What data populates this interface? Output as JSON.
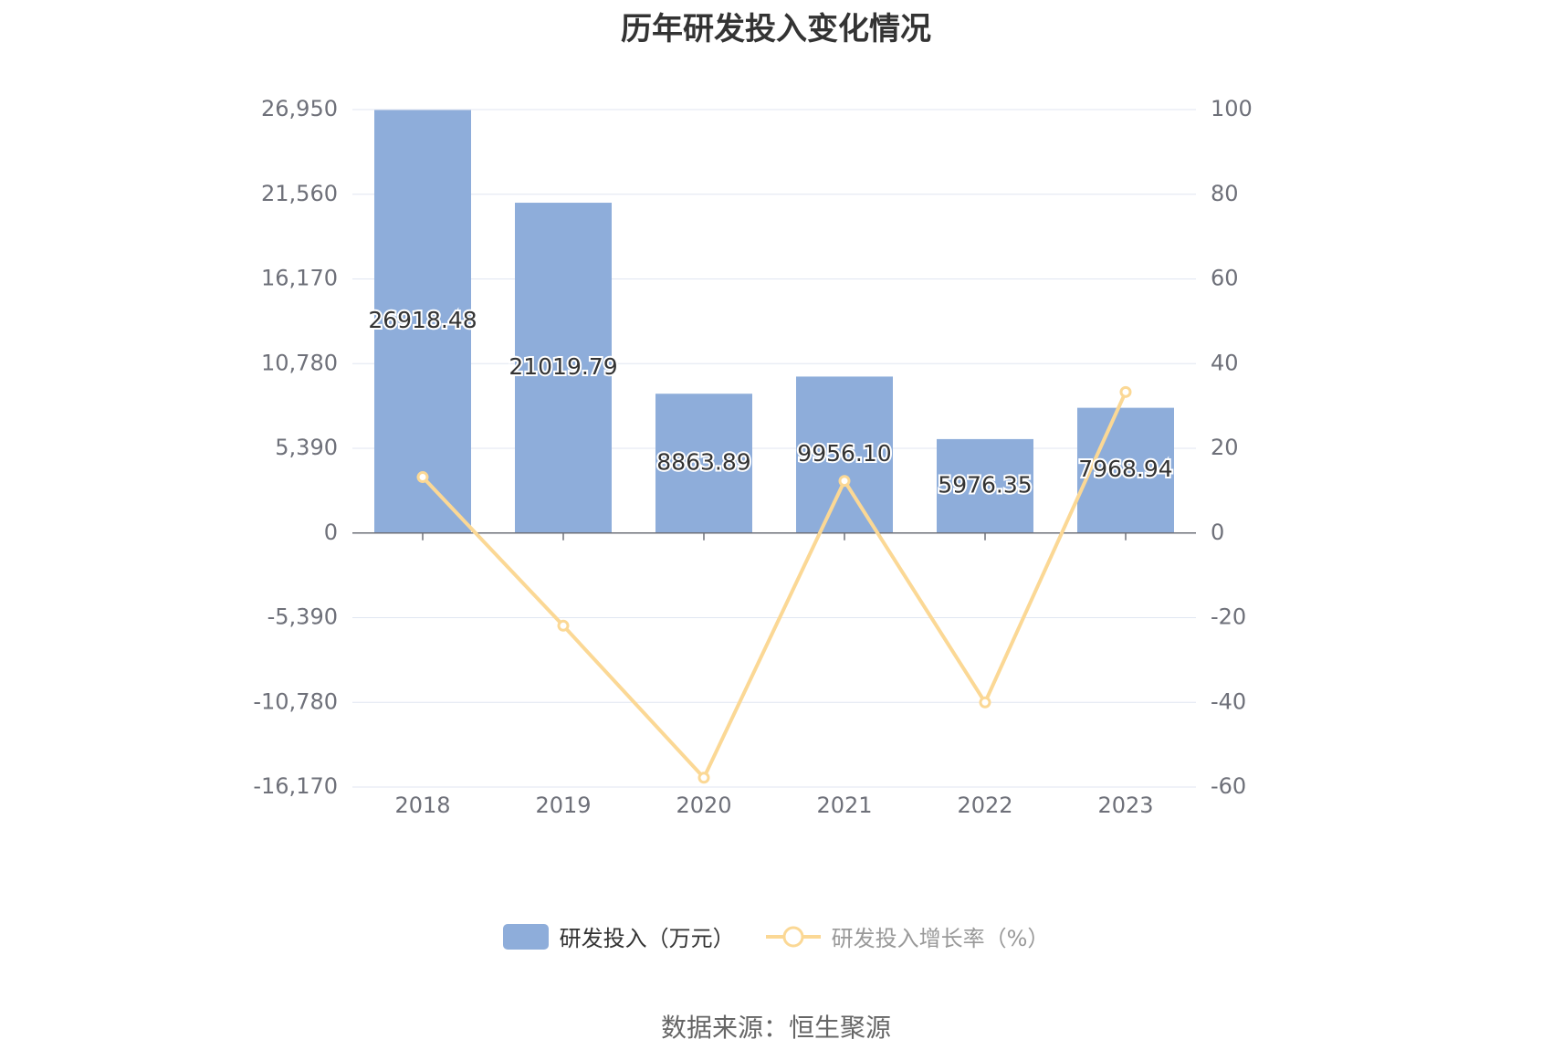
{
  "colors": {
    "bar": "#8eadda",
    "line": "#fbd895",
    "axis_text": "#6e7079",
    "grid": "#e0e6f1",
    "axis_line": "#6e7079",
    "legend_active_text": "#333333",
    "legend_inactive_text": "#999999"
  },
  "chart_data": {
    "type": "bar",
    "title": "历年研发投入变化情况",
    "categories": [
      "2018",
      "2019",
      "2020",
      "2021",
      "2022",
      "2023"
    ],
    "series": [
      {
        "name": "研发投入（万元）",
        "type": "bar",
        "axis": "left",
        "values": [
          26918.48,
          21019.79,
          8863.89,
          9956.1,
          5976.35,
          7968.94
        ],
        "labels": [
          "26918.48",
          "21019.79",
          "8863.89",
          "9956.10",
          "5976.35",
          "7968.94"
        ]
      },
      {
        "name": "研发投入增长率（%）",
        "type": "line",
        "axis": "right",
        "values": [
          13.2,
          -21.9,
          -57.8,
          12.3,
          -40.0,
          33.3
        ]
      }
    ],
    "left_axis": {
      "min": -16170,
      "max": 26950,
      "ticks": [
        -16170,
        -10780,
        -5390,
        0,
        5390,
        10780,
        16170,
        21560,
        26950
      ],
      "tick_labels": [
        "-16,170",
        "-10,780",
        "-5,390",
        "0",
        "5,390",
        "10,780",
        "16,170",
        "21,560",
        "26,950"
      ]
    },
    "right_axis": {
      "min": -60,
      "max": 100,
      "ticks": [
        -60,
        -40,
        -20,
        0,
        20,
        40,
        60,
        80,
        100
      ],
      "tick_labels": [
        "-60",
        "-40",
        "-20",
        "0",
        "20",
        "40",
        "60",
        "80",
        "100"
      ]
    },
    "grid": true,
    "legend_position": "bottom-center"
  },
  "source_text": "数据来源：恒生聚源"
}
